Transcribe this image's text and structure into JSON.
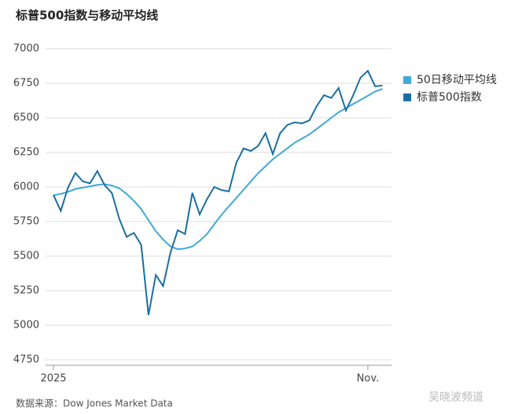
{
  "chart_data": {
    "type": "line",
    "title": "标普500指数与移动平均线",
    "source": "数据来源：Dow Jones Market Data",
    "watermark": "吴晓波频道",
    "categories": [
      "2025",
      null,
      null,
      null,
      null,
      null,
      null,
      null,
      null,
      null,
      null,
      null,
      null,
      null,
      null,
      null,
      null,
      null,
      null,
      null,
      null,
      null,
      null,
      null,
      null,
      null,
      null,
      null,
      null,
      null,
      null,
      null,
      null,
      null,
      null,
      null,
      null,
      null,
      null,
      null,
      null,
      null,
      null,
      "Nov.",
      null,
      null
    ],
    "series": [
      {
        "name": "50日移动平均线",
        "color": "#3fa9d6",
        "values": [
          5940,
          5950,
          5965,
          5985,
          5995,
          6005,
          6015,
          6020,
          6010,
          5990,
          5950,
          5900,
          5840,
          5760,
          5680,
          5620,
          5570,
          5550,
          5555,
          5570,
          5610,
          5660,
          5730,
          5800,
          5860,
          5920,
          5980,
          6040,
          6100,
          6150,
          6200,
          6240,
          6280,
          6320,
          6350,
          6380,
          6420,
          6460,
          6500,
          6540,
          6570,
          6600,
          6630,
          6660,
          6690,
          6710
        ]
      },
      {
        "name": "标普500指数",
        "color": "#1a6fa0",
        "values": [
          5942,
          5827,
          5997,
          6101,
          6041,
          6026,
          6115,
          6013,
          5955,
          5770,
          5639,
          5668,
          5581,
          5074,
          5363,
          5283,
          5525,
          5687,
          5660,
          5958,
          5802,
          5912,
          6000,
          5977,
          5968,
          6173,
          6279,
          6260,
          6297,
          6389,
          6238,
          6389,
          6449,
          6467,
          6460,
          6482,
          6584,
          6664,
          6644,
          6716,
          6553,
          6664,
          6791,
          6840,
          6728,
          6734
        ]
      }
    ],
    "ylim": [
      4750,
      7000
    ],
    "yticks": [
      4750,
      5000,
      5250,
      5500,
      5750,
      6000,
      6250,
      6500,
      6750,
      7000
    ],
    "grid": true
  }
}
